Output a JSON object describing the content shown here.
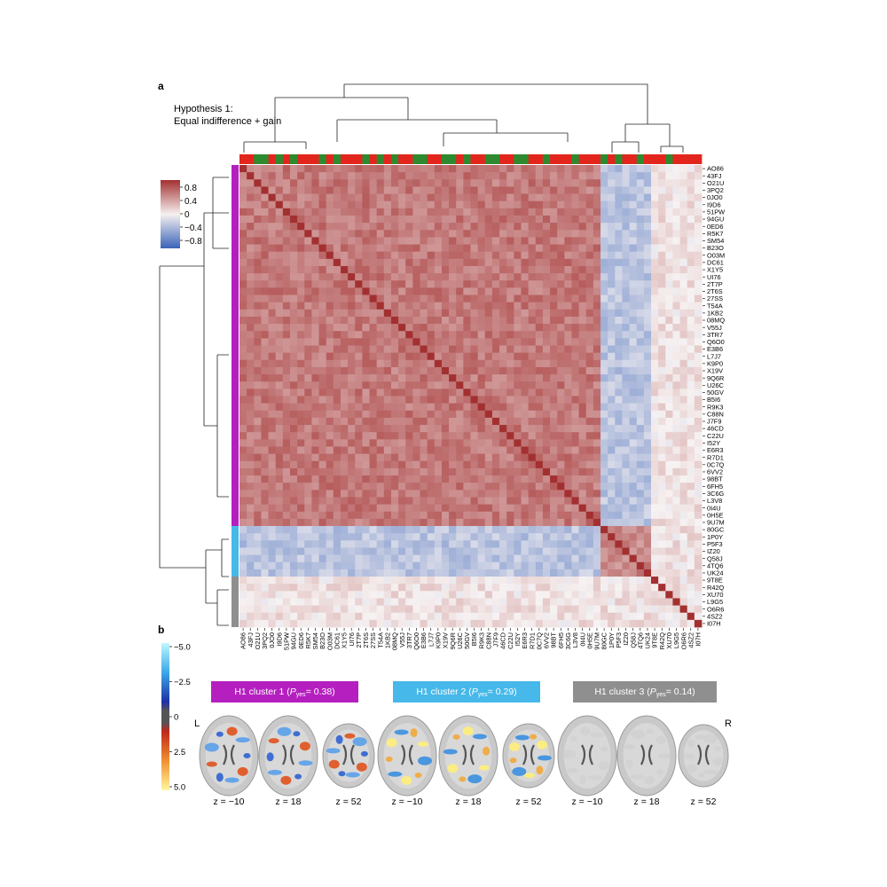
{
  "panel_a_label": "a",
  "panel_b_label": "b",
  "hypothesis": {
    "line1": "Hypothesis 1:",
    "line2": "Equal indifference + gain"
  },
  "colors": {
    "pos": "#a33030",
    "neg": "#3a63b8",
    "cluster1": "#b51fbf",
    "cluster2": "#46b8ea",
    "cluster3": "#8f8f8f",
    "top_red": "#e3261d",
    "top_green": "#2f8a2f"
  },
  "chart_data": [
    {
      "type": "heatmap",
      "title": "",
      "labels": [
        "AO86",
        "43FJ",
        "O21U",
        "3PQ2",
        "0JO0",
        "I9D6",
        "51PW",
        "94GU",
        "0ED6",
        "R5K7",
        "SM54",
        "B23O",
        "O03M",
        "DC61",
        "X1Y5",
        "UI76",
        "2T7P",
        "2T6S",
        "27SS",
        "T54A",
        "1KB2",
        "08MQ",
        "V55J",
        "3TR7",
        "Q6O0",
        "E3B6",
        "L7J7",
        "K9P0",
        "X19V",
        "9Q6R",
        "U26C",
        "50GV",
        "B5I6",
        "R9K3",
        "C88N",
        "J7F9",
        "46CD",
        "C22U",
        "I52Y",
        "E6R3",
        "R7D1",
        "0C7Q",
        "6VV2",
        "98BT",
        "6FH5",
        "3C6G",
        "L3V8",
        "0I4U",
        "0H5E",
        "9U7M",
        "80GC",
        "1P0Y",
        "P5F3",
        "IZ20",
        "Q58J",
        "4TQ6",
        "UK24",
        "9T8E",
        "R42Q",
        "XU70",
        "L9G5",
        "O6R6",
        "4SZ2",
        "I07H"
      ],
      "clusters": [
        {
          "name": "H1 cluster 1",
          "start": 0,
          "end": 49
        },
        {
          "name": "H1 cluster 2",
          "start": 50,
          "end": 56
        },
        {
          "name": "H1 cluster 3",
          "start": 57,
          "end": 63
        }
      ],
      "top_bar": [
        "r",
        "r",
        "g",
        "g",
        "r",
        "g",
        "r",
        "g",
        "r",
        "r",
        "r",
        "g",
        "r",
        "g",
        "r",
        "r",
        "r",
        "g",
        "r",
        "g",
        "r",
        "g",
        "r",
        "r",
        "g",
        "g",
        "r",
        "r",
        "g",
        "g",
        "r",
        "g",
        "r",
        "r",
        "g",
        "g",
        "r",
        "r",
        "g",
        "g",
        "r",
        "r",
        "g",
        "r",
        "r",
        "r",
        "g",
        "r",
        "r",
        "r",
        "g",
        "r",
        "g",
        "r",
        "r",
        "g",
        "r",
        "r",
        "r",
        "g",
        "r",
        "r",
        "r",
        "r"
      ],
      "value_levels": {
        "cluster1_within": 0.62,
        "cluster2_within": 0.55,
        "cross_1_2": -0.32,
        "cluster3_within": 0.08,
        "diagonal": 1.0
      },
      "colorbar": {
        "ticks": [
          "0.8",
          "0.4",
          "0",
          "−0.4",
          "−0.8"
        ],
        "range": [
          -1,
          1
        ]
      }
    }
  ],
  "panel_b": {
    "colorbar_ticks": [
      "−5.0",
      "−2.5",
      "0",
      "2.5",
      "5.0"
    ],
    "clusters": [
      {
        "label": "H1 cluster 1 (",
        "p": "P",
        "psub": "yes",
        "value": " = 0.38)"
      },
      {
        "label": "H1 cluster 2 (",
        "p": "P",
        "psub": "yes",
        "value": " = 0.29)"
      },
      {
        "label": "H1 cluster 3 (",
        "p": "P",
        "psub": "yes",
        "value": " = 0.14)"
      }
    ],
    "z_labels": [
      "z = −10",
      "z = 18",
      "z = 52",
      "z = −10",
      "z = 18",
      "z = 52",
      "z = −10",
      "z = 18",
      "z = 52"
    ],
    "side_left": "L",
    "side_right": "R"
  }
}
